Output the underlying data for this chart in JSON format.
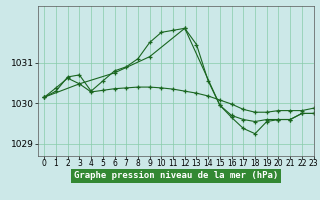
{
  "title": "Graphe pression niveau de la mer (hPa)",
  "background_color": "#cce8e8",
  "plot_bg_color": "#cce8e8",
  "grid_color": "#88ccaa",
  "line_color": "#1a6620",
  "xlim": [
    -0.5,
    23
  ],
  "ylim": [
    1028.7,
    1032.4
  ],
  "yticks": [
    1029,
    1030,
    1031
  ],
  "xticks": [
    0,
    1,
    2,
    3,
    4,
    5,
    6,
    7,
    8,
    9,
    10,
    11,
    12,
    13,
    14,
    15,
    16,
    17,
    18,
    19,
    20,
    21,
    22,
    23
  ],
  "series1_x": [
    0,
    1,
    2,
    3,
    4,
    5,
    6,
    7,
    8,
    9,
    10,
    11,
    12,
    13,
    14,
    15,
    16,
    17,
    18,
    19,
    20,
    21,
    22,
    23
  ],
  "series1_y": [
    1030.15,
    1030.3,
    1030.65,
    1030.7,
    1030.3,
    1030.55,
    1030.8,
    1030.9,
    1031.1,
    1031.5,
    1031.75,
    1031.8,
    1031.85,
    1031.45,
    1030.55,
    1029.95,
    1029.7,
    1029.6,
    1029.55,
    1029.6,
    1029.6,
    1029.6,
    1029.75,
    1029.75
  ],
  "series2_x": [
    0,
    1,
    2,
    3,
    4,
    5,
    6,
    7,
    8,
    9,
    10,
    11,
    12,
    13,
    14,
    15,
    16,
    17,
    18,
    19,
    20,
    21,
    22,
    23
  ],
  "series2_y": [
    1030.15,
    1030.38,
    1030.62,
    1030.48,
    1030.28,
    1030.32,
    1030.36,
    1030.38,
    1030.4,
    1030.4,
    1030.38,
    1030.35,
    1030.3,
    1030.25,
    1030.18,
    1030.08,
    1029.98,
    1029.85,
    1029.78,
    1029.78,
    1029.82,
    1029.82,
    1029.82,
    1029.88
  ],
  "series3_x": [
    0,
    3,
    6,
    9,
    12,
    15,
    16,
    17,
    18,
    19,
    20,
    21,
    22,
    23
  ],
  "series3_y": [
    1030.15,
    1030.48,
    1030.75,
    1031.15,
    1031.85,
    1029.95,
    1029.65,
    1029.38,
    1029.25,
    1029.55,
    1029.6,
    1029.6,
    1029.75,
    1029.75
  ],
  "xlabel_fontsize": 5.5,
  "ylabel_fontsize": 6.5,
  "title_fontsize": 6.5,
  "title_bg_color": "#338833",
  "title_text_color": "#ffffff"
}
